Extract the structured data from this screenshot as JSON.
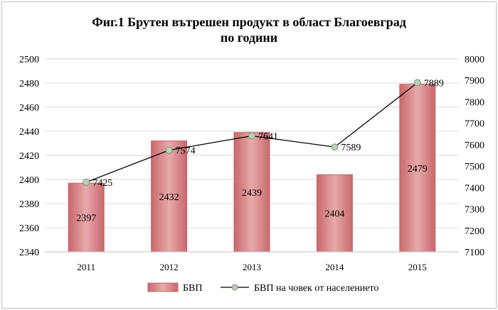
{
  "chart_data": {
    "type": "bar+line",
    "title_line1": "Фиг.1 Брутен вътрешен продукт в област Благоевград",
    "title_line2": "по години",
    "categories": [
      "2011",
      "2012",
      "2013",
      "2014",
      "2015"
    ],
    "series": [
      {
        "name": "БВП",
        "type": "bar",
        "axis": "left",
        "values": [
          2397,
          2432,
          2439,
          2404,
          2479
        ],
        "color": "#d8898b"
      },
      {
        "name": "БВП на човек от населението",
        "type": "line",
        "axis": "right",
        "values": [
          7425,
          7574,
          7641,
          7589,
          7889
        ],
        "color": "#000000",
        "marker_color": "#b7d3b5"
      }
    ],
    "y_left": {
      "min": 2340,
      "max": 2500,
      "step": 20
    },
    "y_right": {
      "min": 7100,
      "max": 8000,
      "step": 100
    },
    "legend": "bottom",
    "grid": true
  }
}
